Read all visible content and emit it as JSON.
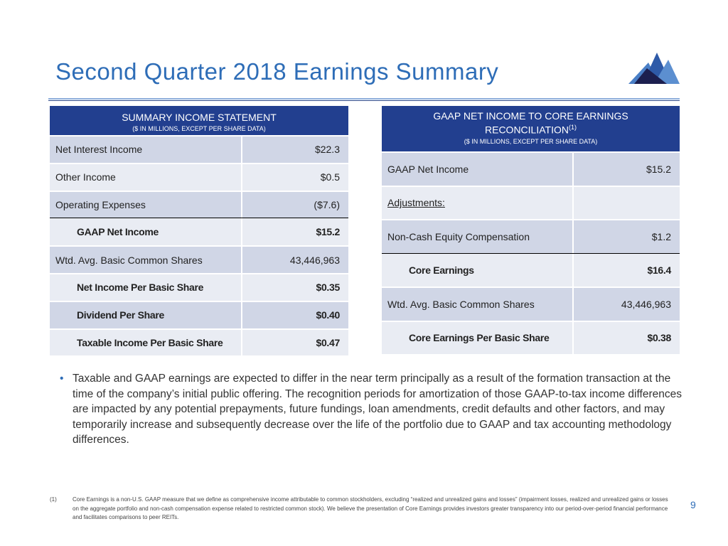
{
  "title": "Second Quarter 2018 Earnings Summary",
  "left": {
    "header": "SUMMARY INCOME STATEMENT",
    "subheader": "($ IN MILLIONS, EXCEPT PER SHARE DATA)",
    "rows": [
      [
        "Net Interest Income",
        "$22.3"
      ],
      [
        "Other Income",
        "$0.5"
      ],
      [
        "Operating Expenses",
        "($7.6)"
      ],
      [
        "GAAP Net Income",
        "$15.2"
      ],
      [
        "Wtd. Avg. Basic Common Shares",
        "43,446,963"
      ],
      [
        "Net Income Per Basic Share",
        "$0.35"
      ],
      [
        "Dividend Per Share",
        "$0.40"
      ],
      [
        "Taxable Income Per Basic Share",
        "$0.47"
      ]
    ]
  },
  "right": {
    "header": "GAAP NET INCOME TO CORE EARNINGS",
    "header2": "RECONCILIATION",
    "sup": "(1)",
    "subheader": "($ IN MILLIONS, EXCEPT PER SHARE DATA)",
    "rows": [
      [
        "GAAP Net Income",
        "$15.2"
      ],
      [
        "Adjustments:",
        ""
      ],
      [
        "Non-Cash Equity Compensation",
        "$1.2"
      ],
      [
        "Core Earnings",
        "$16.4"
      ],
      [
        "Wtd. Avg. Basic Common Shares",
        "43,446,963"
      ],
      [
        "Core Earnings Per Basic Share",
        "$0.38"
      ]
    ]
  },
  "bullet": "Taxable and GAAP earnings are expected to differ in the near term principally as a result of the formation transaction at the time of the company’s initial public offering.  The recognition periods for amortization of those GAAP-to-tax income differences are impacted by any potential prepayments, future fundings, loan amendments, credit defaults and other factors, and may temporarily increase and subsequently decrease over the life of the portfolio due to GAAP and tax accounting methodology differences.",
  "footnote": {
    "num": "(1)",
    "text": "Core Earnings is a non-U.S. GAAP measure that we define as comprehensive income attributable to common stockholders, excluding “realized and unrealized gains and losses” (impairment losses, realized and unrealized gains or losses on the aggregate portfolio and non-cash compensation expense related to restricted common stock). We believe the presentation of Core Earnings provides investors greater transparency into our period-over-period financial performance and facilitates comparisons to peer REITs."
  },
  "page_number": "9"
}
